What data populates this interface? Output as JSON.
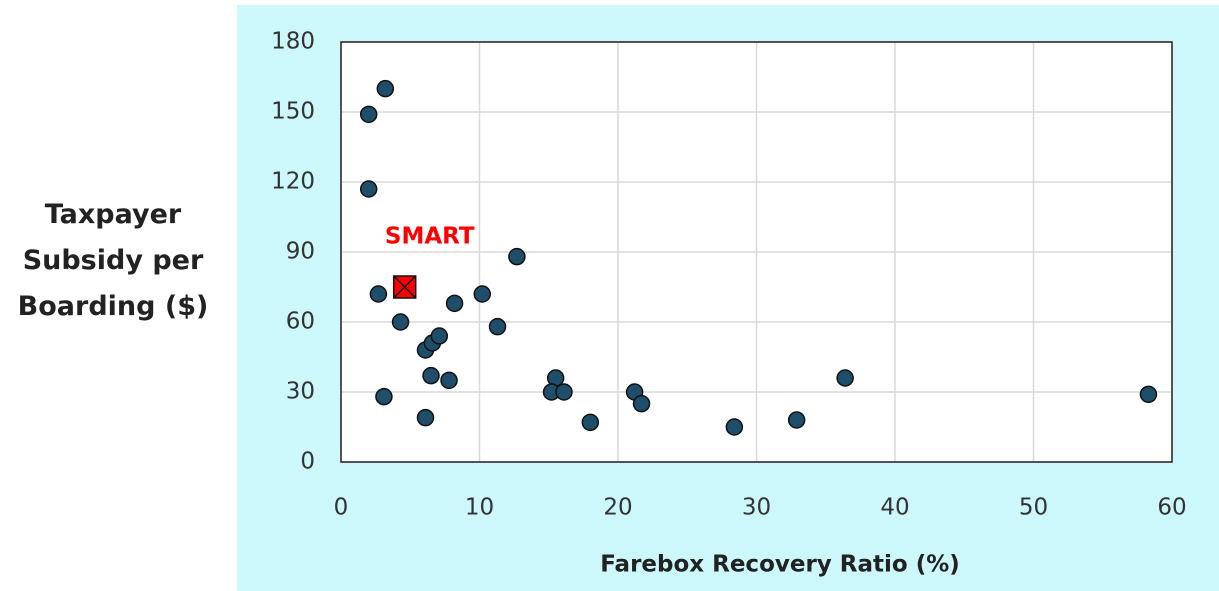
{
  "chart_data": {
    "type": "scatter",
    "x_label": "Farebox Recovery Ratio (%)",
    "y_label": "Taxpayer Subsidy per Boarding ($)",
    "xlim": [
      0,
      60
    ],
    "xticks": [
      0,
      10,
      20,
      30,
      40,
      50,
      60
    ],
    "ylim": [
      0,
      180
    ],
    "yticks": [
      0,
      30,
      60,
      90,
      120,
      150,
      180
    ],
    "grid": true,
    "series": [
      {
        "color": "#1f4e6b",
        "x": [
          3.2,
          2.0,
          2.0,
          2.7,
          4.3,
          12.7,
          8.2,
          10.2,
          11.3,
          6.1,
          6.6,
          7.1,
          6.5,
          7.8,
          3.1,
          6.1,
          15.5,
          15.2,
          16.1,
          18.0,
          21.2,
          21.7,
          28.4,
          32.9,
          36.4,
          58.3
        ],
        "values": [
          160,
          149,
          117,
          72,
          60,
          88,
          68,
          72,
          58,
          48,
          51,
          54,
          37,
          35,
          28,
          19,
          36,
          30,
          30,
          17,
          30,
          25,
          15,
          18,
          36,
          29
        ]
      }
    ],
    "highlight": {
      "label": "SMART",
      "x": 4.6,
      "y": 75,
      "color": "#ff0000"
    }
  }
}
